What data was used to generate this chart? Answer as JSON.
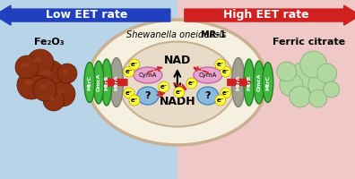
{
  "title_italic": "Shewanella oneidensis ",
  "title_bold": "MR-1",
  "left_label": "Low EET rate",
  "right_label": "High EET rate",
  "fe2o3_label": "Fe₂O₃",
  "ferric_label": "Ferric citrate",
  "nad_label": "NAD",
  "nadh_label": "NADH",
  "cyma_label": "CymA",
  "question": "?",
  "electron": "e⁻",
  "bg_left": "#b8d4e8",
  "bg_right": "#f0c8c8",
  "cell_fill": "#f5f0e0",
  "cell_edge": "#c8b090",
  "inner_fill": "#e8dcc8",
  "cyma_fill": "#e8a0d0",
  "question_fill": "#80b8e0",
  "green_fill": "#40b840",
  "green_edge": "#208020",
  "gray_fill": "#a0a090",
  "brown_fill": "#8b3010",
  "brown_edge": "#601800",
  "light_green_fill": "#b0d8a0",
  "light_green_edge": "#80a870",
  "yellow_fill": "#ffff40",
  "yellow_edge": "#c0a000",
  "arrow_left_color": "#2040c0",
  "arrow_right_color": "#d02020",
  "red_arrow_color": "#d02020",
  "figsize": [
    3.96,
    2.0
  ],
  "dpi": 100
}
